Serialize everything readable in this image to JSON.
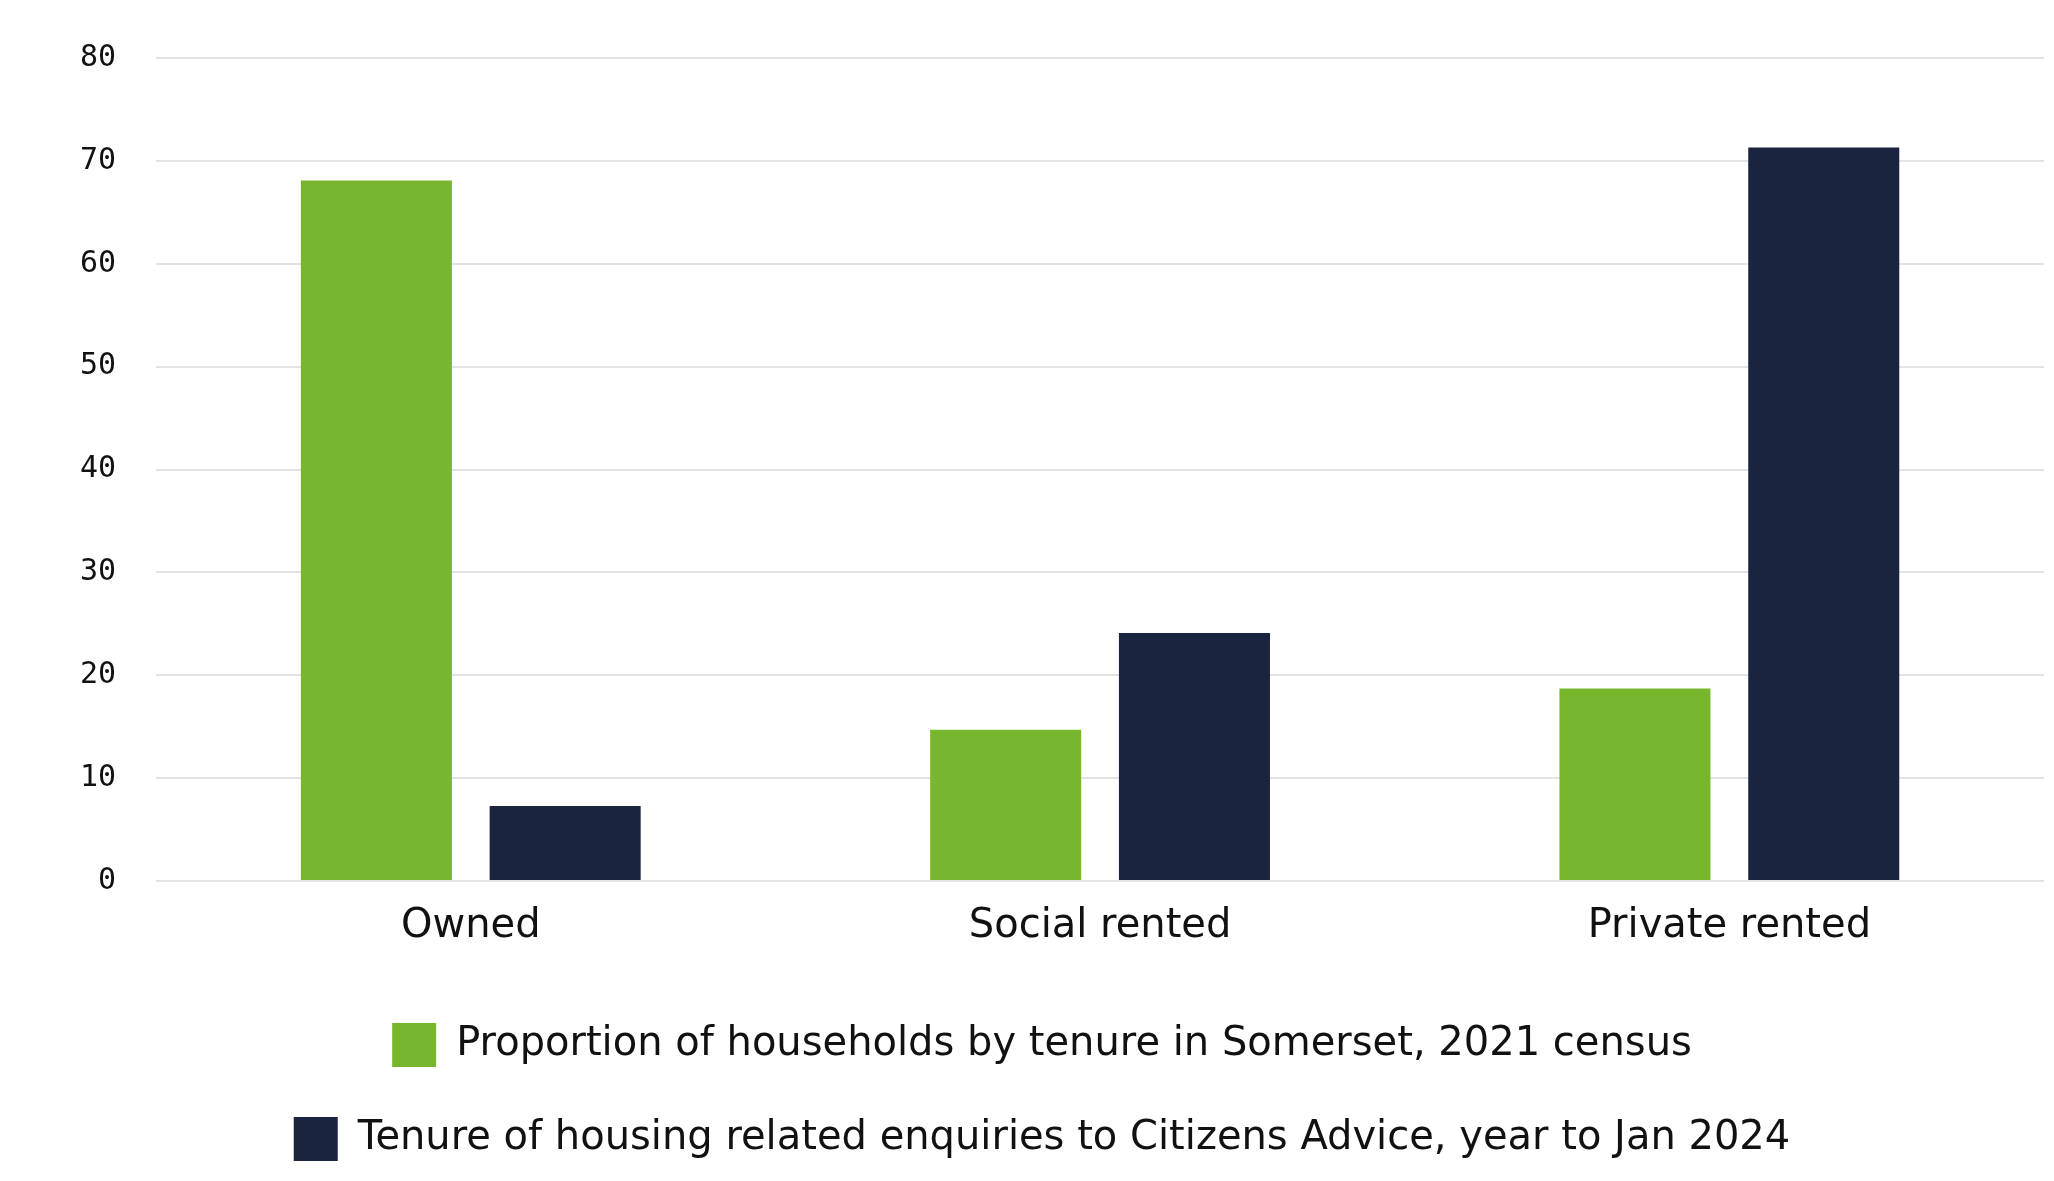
{
  "chart_data": {
    "type": "bar",
    "categories": [
      "Owned",
      "Social rented",
      "Private rented"
    ],
    "series": [
      {
        "name": "Proportion of households by tenure in Somerset, 2021 census",
        "color": "#78b72d",
        "values": [
          68.1,
          14.7,
          18.7
        ]
      },
      {
        "name": "Tenure of housing related enquiries to Citizens Advice, year to Jan 2024",
        "color": "#1a243f",
        "values": [
          7.3,
          24.1,
          71.3
        ]
      }
    ],
    "ylim": [
      0,
      80
    ],
    "yticks": [
      0,
      10,
      20,
      30,
      40,
      50,
      60,
      70,
      80
    ],
    "grid": "y",
    "legend": "bottom"
  }
}
